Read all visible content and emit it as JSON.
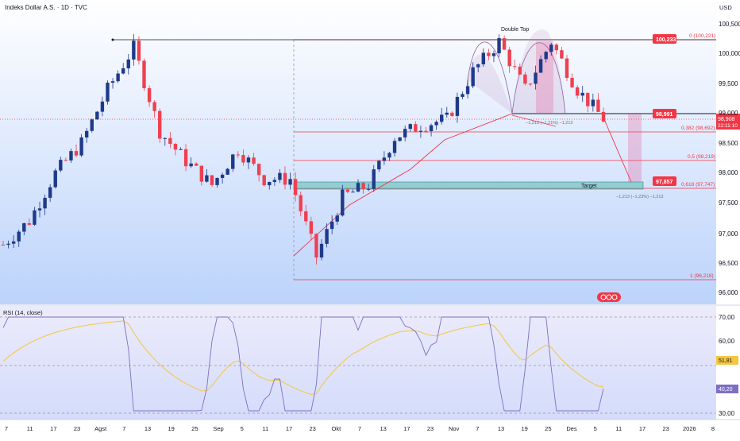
{
  "header": {
    "title": "Indeks Dollar A.S. · 1D · TVC",
    "currency": "USD"
  },
  "price_scale": {
    "ticks": [
      "100,500",
      "100,000",
      "99,500",
      "99,000",
      "98,500",
      "98,000",
      "97,500",
      "97,000",
      "96,500",
      "96,000"
    ]
  },
  "rsi_scale": {
    "ticks": [
      "70,00",
      "60,00",
      "30,00"
    ]
  },
  "time_axis": {
    "ticks": [
      "7",
      "11",
      "17",
      "23",
      "Agst",
      "7",
      "13",
      "19",
      "25",
      "Sep",
      "5",
      "11",
      "17",
      "23",
      "Okt",
      "7",
      "13",
      "17",
      "23",
      "Nov",
      "7",
      "13",
      "19",
      "25",
      "Des",
      "5",
      "11",
      "17",
      "23",
      "2026",
      "8"
    ]
  },
  "annotations": {
    "double_top": "Double Top",
    "target": "Target",
    "fib_0": "0 (100,221)",
    "fib_382": "0,382 (98,692)",
    "fib_5": "0,5 (98,219)",
    "fib_618": "0,618 (97,747)",
    "fib_1": "1 (96,218)",
    "measure_top": "−1,213 (−1,21%) −1,213",
    "measure_bottom": "−1,213 (−1,23%) −1,213"
  },
  "price_labels": {
    "high": "100,233",
    "neckline": "98,991",
    "last_price": "98,908",
    "countdown": "22:11:10",
    "target": "97,857"
  },
  "rsi_labels": {
    "title": "RSI (14, close)",
    "ma_value": "51,81",
    "rsi_value": "40,20"
  },
  "colors": {
    "up": "#1e3a8a",
    "down": "#ef4050",
    "fib": "#f23645",
    "target_zone": "#5fb8b0",
    "rsi_line": "#7e6fc4",
    "rsi_ma": "#f5c542"
  },
  "chart_data": {
    "type": "candlestick",
    "title": "Indeks Dollar A.S. · 1D · TVC",
    "ylim": [
      95.9,
      100.6
    ],
    "price_points_approx": [
      {
        "x": "Jul 1",
        "close": 96.8
      },
      {
        "x": "Jul 7",
        "close": 97.2
      },
      {
        "x": "Jul 14",
        "close": 98.0
      },
      {
        "x": "Jul 21",
        "close": 98.5
      },
      {
        "x": "Jul 28",
        "close": 99.4
      },
      {
        "x": "Aug 1",
        "close": 100.1
      },
      {
        "x": "Aug 1",
        "close": 98.7
      },
      {
        "x": "Aug 13",
        "close": 98.2
      },
      {
        "x": "Aug 22",
        "close": 97.8
      },
      {
        "x": "Aug 25",
        "close": 98.4
      },
      {
        "x": "Sep 5",
        "close": 97.9
      },
      {
        "x": "Sep 11",
        "close": 97.9
      },
      {
        "x": "Sep 17",
        "close": 96.6
      },
      {
        "x": "Sep 25",
        "close": 97.6
      },
      {
        "x": "Oct 1",
        "close": 97.8
      },
      {
        "x": "Oct 10",
        "close": 98.6
      },
      {
        "x": "Oct 15",
        "close": 98.8
      },
      {
        "x": "Oct 22",
        "close": 98.9
      },
      {
        "x": "Oct 31",
        "close": 99.7
      },
      {
        "x": "Nov 5",
        "close": 100.2
      },
      {
        "x": "Nov 14",
        "close": 99.4
      },
      {
        "x": "Nov 21",
        "close": 100.2
      },
      {
        "x": "Nov 28",
        "close": 99.4
      },
      {
        "x": "Dec 5",
        "close": 98.908
      }
    ],
    "levels": [
      {
        "name": "0",
        "value": 100.221
      },
      {
        "name": "0,382",
        "value": 98.692
      },
      {
        "name": "0,5",
        "value": 98.219
      },
      {
        "name": "0,618",
        "value": 97.747
      },
      {
        "name": "1",
        "value": 96.218
      }
    ],
    "neckline": 98.991,
    "target": 97.857,
    "rsi": {
      "ylim": [
        25,
        72
      ],
      "last": 40.2,
      "ma_last": 51.81
    }
  }
}
